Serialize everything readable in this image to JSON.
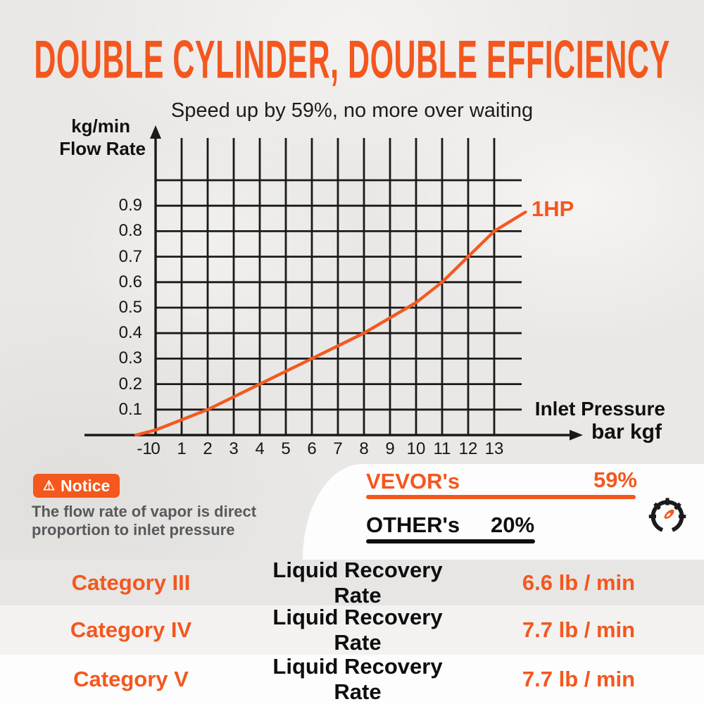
{
  "header": {
    "title": "DOUBLE CYLINDER, DOUBLE EFFICIENCY",
    "subtitle": "Speed up by 59%, no more over waiting"
  },
  "chart_data": {
    "type": "line",
    "ylabel_unit": "kg/min",
    "ylabel_name": "Flow Rate",
    "xlabel_name": "Inlet Pressure",
    "xlabel_unit": "bar kgf",
    "grid": true,
    "xlim": [
      -1,
      14
    ],
    "ylim": [
      0,
      1.0
    ],
    "x_ticks": [
      -1,
      0,
      1,
      2,
      3,
      4,
      5,
      6,
      7,
      8,
      9,
      10,
      11,
      12,
      13
    ],
    "y_ticks": [
      0.1,
      0.2,
      0.3,
      0.4,
      0.5,
      0.6,
      0.7,
      0.8,
      0.9
    ],
    "series": [
      {
        "name": "1HP",
        "color": "#F4591F",
        "points": [
          [
            -0.75,
            0
          ],
          [
            0,
            0.02
          ],
          [
            2,
            0.1
          ],
          [
            4,
            0.2
          ],
          [
            6,
            0.3
          ],
          [
            8,
            0.4
          ],
          [
            10,
            0.52
          ],
          [
            11,
            0.6
          ],
          [
            12,
            0.7
          ],
          [
            13,
            0.8
          ],
          [
            14.2,
            0.875
          ]
        ]
      }
    ]
  },
  "notice": {
    "warning_icon": "⚠",
    "badge_label": "Notice",
    "text_line1": "The flow rate of vapor is direct",
    "text_line2": "proportion to inlet pressure"
  },
  "comparison": {
    "vevor_label": "VEVOR's",
    "vevor_value": "59%",
    "other_label": "OTHER's",
    "other_value": "20%",
    "gauge_icon": "speedometer"
  },
  "table": {
    "rows": [
      {
        "category": "Category III",
        "metric": "Liquid Recovery Rate",
        "value": "6.6 lb / min"
      },
      {
        "category": "Category IV",
        "metric": "Liquid Recovery Rate",
        "value": "7.7 lb / min"
      },
      {
        "category": "Category V",
        "metric": "Liquid Recovery Rate",
        "value": "7.7 lb / min"
      }
    ]
  },
  "colors": {
    "accent_orange": "#F4571E",
    "grid_black": "#1A1A1A",
    "notice_text_gray": "#58595B"
  }
}
